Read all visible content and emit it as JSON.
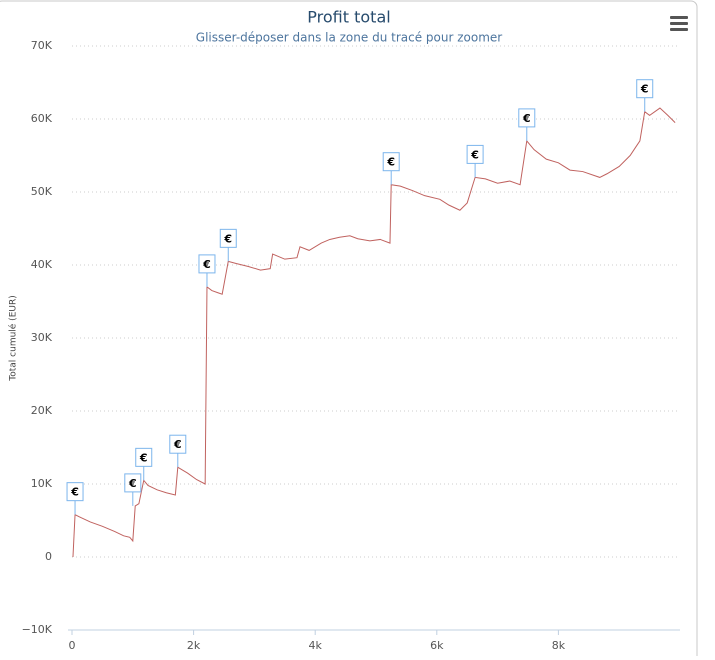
{
  "chart_data": {
    "type": "line",
    "title": "Profit total",
    "subtitle": "Glisser-déposer dans la zone du tracé pour zoomer",
    "y_label": "Total cumulé (EUR)",
    "color": "#c0625f",
    "grid": true,
    "xlim": [
      0,
      10000
    ],
    "xticks": [
      0,
      {
        "value": 2000,
        "label": "2k"
      },
      {
        "value": 4000,
        "label": "4k"
      },
      {
        "value": 6000,
        "label": "6k"
      },
      {
        "value": 8000,
        "label": "8k"
      }
    ],
    "ylim": [
      -10000,
      70000
    ],
    "yticks": [
      {
        "value": -10000,
        "label": "−10K"
      },
      0,
      {
        "value": 10000,
        "label": "10K"
      },
      {
        "value": 20000,
        "label": "20K"
      },
      {
        "value": 30000,
        "label": "30K"
      },
      {
        "value": 40000,
        "label": "40K"
      },
      {
        "value": 50000,
        "label": "50K"
      },
      {
        "value": 60000,
        "label": "60K"
      },
      {
        "value": 70000,
        "label": "70K"
      }
    ],
    "x": [
      16,
      50,
      120,
      300,
      500,
      700,
      850,
      950,
      1000,
      1040,
      1100,
      1180,
      1250,
      1400,
      1550,
      1700,
      1740,
      1800,
      1900,
      2050,
      2190,
      2220,
      2300,
      2400,
      2470,
      2570,
      2700,
      2900,
      3100,
      3260,
      3300,
      3500,
      3700,
      3750,
      3900,
      4100,
      4240,
      4400,
      4570,
      4700,
      4900,
      5070,
      5230,
      5250,
      5400,
      5600,
      5800,
      6050,
      6200,
      6380,
      6500,
      6630,
      6800,
      7000,
      7200,
      7370,
      7480,
      7600,
      7800,
      8000,
      8190,
      8400,
      8680,
      8800,
      9000,
      9180,
      9340,
      9420,
      9500,
      9670,
      9800,
      9920
    ],
    "values": [
      0,
      5800,
      5500,
      4800,
      4200,
      3500,
      2900,
      2700,
      2200,
      7000,
      7300,
      10500,
      9800,
      9200,
      8800,
      8500,
      12300,
      12000,
      11500,
      10600,
      10000,
      37000,
      36500,
      36200,
      36000,
      40500,
      40200,
      39800,
      39300,
      39500,
      41500,
      40800,
      41000,
      42500,
      42000,
      43000,
      43500,
      43800,
      44000,
      43600,
      43300,
      43500,
      43000,
      51000,
      50800,
      50200,
      49500,
      49000,
      48200,
      47500,
      48500,
      52000,
      51800,
      51200,
      51500,
      51000,
      57000,
      55800,
      54500,
      54000,
      53000,
      52800,
      52000,
      52500,
      53500,
      55000,
      57000,
      61000,
      60500,
      61500,
      60500,
      59500
    ],
    "flags": {
      "x": [
        50,
        1000,
        1180,
        1740,
        2220,
        2570,
        5250,
        6630,
        7480,
        9420
      ],
      "y": [
        5800,
        7000,
        10500,
        12300,
        37000,
        40500,
        51000,
        52000,
        57000,
        61000
      ],
      "labels": [
        "€",
        "€",
        "€",
        "€",
        "€",
        "€",
        "€",
        "€",
        "€",
        "€"
      ]
    }
  }
}
